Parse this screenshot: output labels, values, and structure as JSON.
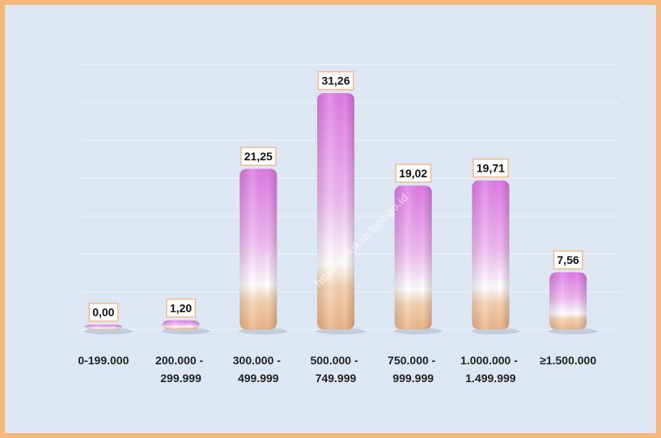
{
  "chart_data": {
    "type": "bar",
    "categories": [
      "0-199.000",
      "200.000 - 299.999",
      "300.000 - 499.999",
      "500.000 - 749.999",
      "750.000 - 999.999",
      "1.000.000 - 1.499.999",
      "≥1.500.000"
    ],
    "values": [
      0.0,
      1.2,
      21.25,
      31.26,
      19.02,
      19.71,
      7.56
    ],
    "value_labels": [
      "0,00",
      "1,20",
      "21,25",
      "31,26",
      "19,02",
      "19,71",
      "7,56"
    ],
    "ylim": [
      0,
      35
    ],
    "yticks": [
      0,
      5,
      10,
      15,
      20,
      25,
      30,
      35
    ],
    "grid": true,
    "watermark": "https://okikab.bps.go.id"
  }
}
